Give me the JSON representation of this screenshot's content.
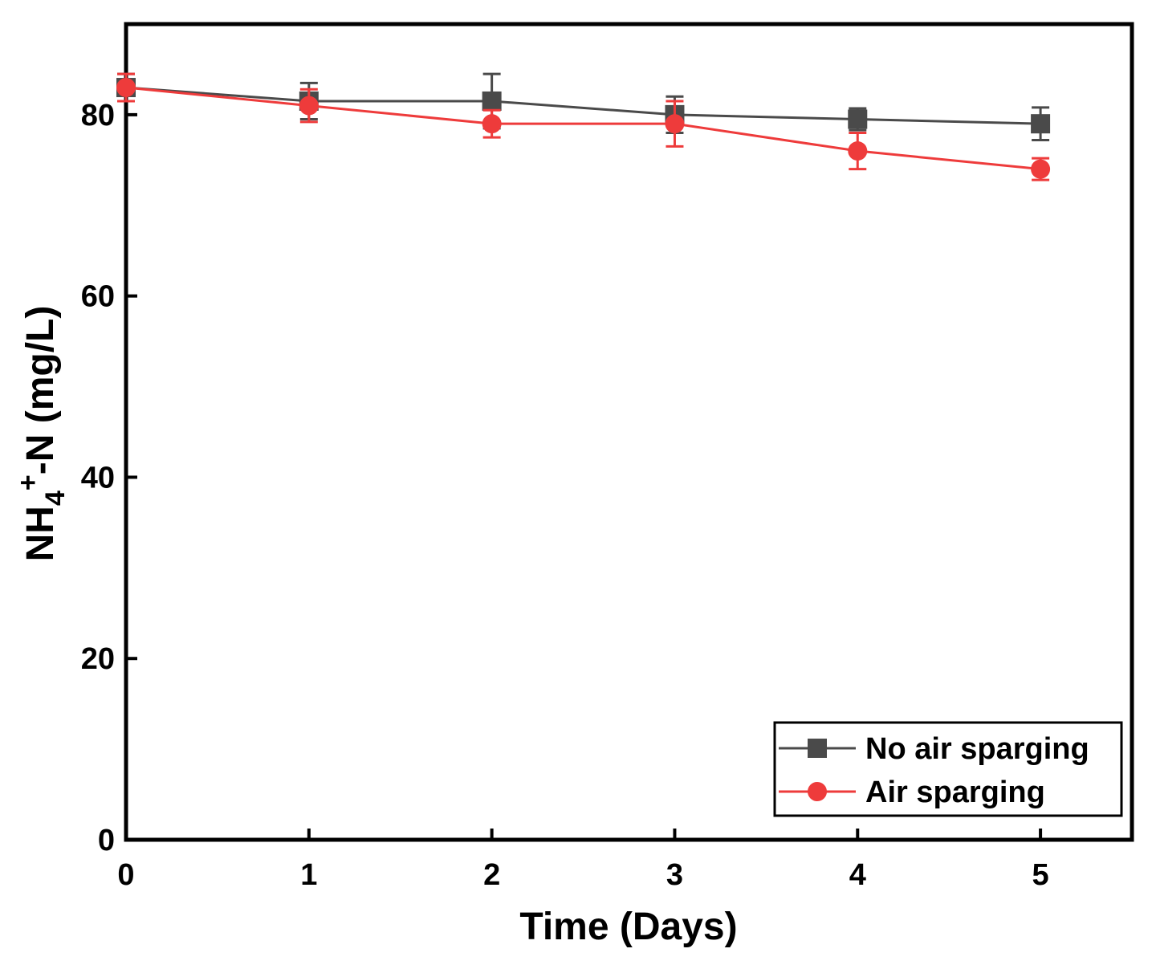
{
  "chart_data": {
    "type": "line",
    "title": "",
    "xlabel": "Time (Days)",
    "ylabel": {
      "base": "NH",
      "subscript": "4",
      "superscript": "+",
      "rest": "-N (mg/L)"
    },
    "xlim": [
      0,
      5.5
    ],
    "ylim": [
      0,
      90
    ],
    "xticks": [
      0,
      1,
      2,
      3,
      4,
      5
    ],
    "yticks": [
      0,
      20,
      40,
      60,
      80
    ],
    "grid": false,
    "legend_position": "bottom-right",
    "x": [
      0,
      1,
      2,
      3,
      4,
      5
    ],
    "series": [
      {
        "name": "No air sparging",
        "marker": "square",
        "color": "#4a4a4a",
        "values": [
          83,
          81.5,
          81.5,
          80,
          79.5,
          79
        ],
        "errors": [
          1.5,
          2.0,
          3.0,
          2.0,
          1.2,
          1.8
        ]
      },
      {
        "name": "Air sparging",
        "marker": "circle",
        "color": "#ee3b3b",
        "values": [
          83,
          81,
          79,
          79,
          76,
          74
        ],
        "errors": [
          1.5,
          1.8,
          1.5,
          2.5,
          2.0,
          1.2
        ]
      }
    ]
  }
}
